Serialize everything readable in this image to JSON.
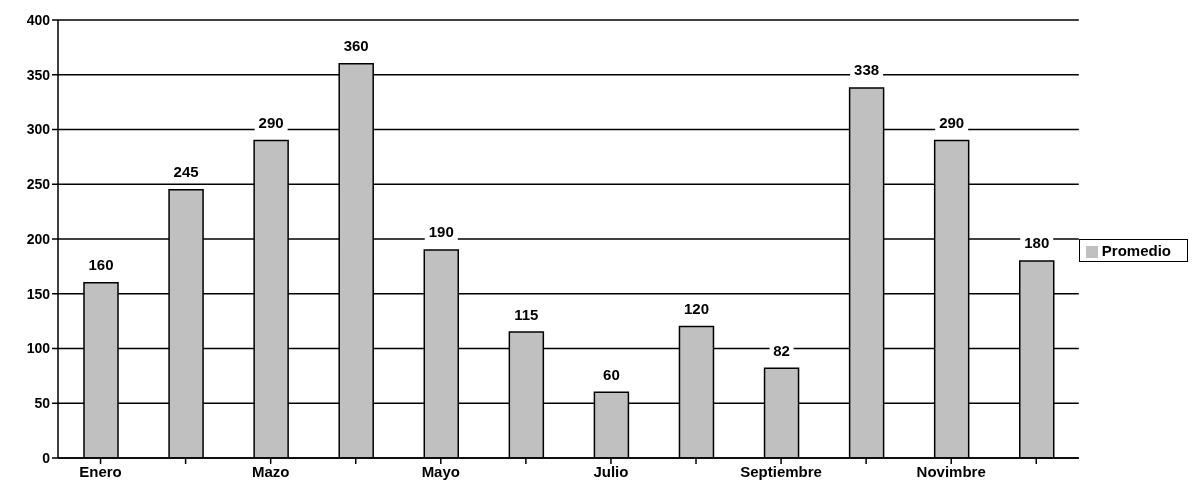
{
  "chart_data": {
    "type": "bar",
    "categories": [
      "Enero",
      null,
      "Mazo",
      null,
      "Mayo",
      null,
      "Julio",
      null,
      "Septiembre",
      null,
      "Novimbre",
      null
    ],
    "series": [
      {
        "name": "Promedio",
        "color": "#c0c0c0",
        "values": [
          160,
          245,
          290,
          360,
          190,
          115,
          60,
          120,
          82,
          338,
          290,
          180
        ]
      }
    ],
    "ylim": [
      0,
      400
    ],
    "yticks": [
      0,
      50,
      100,
      150,
      200,
      250,
      300,
      350,
      400
    ],
    "grid": "y",
    "legend": "right",
    "data_labels": true
  }
}
